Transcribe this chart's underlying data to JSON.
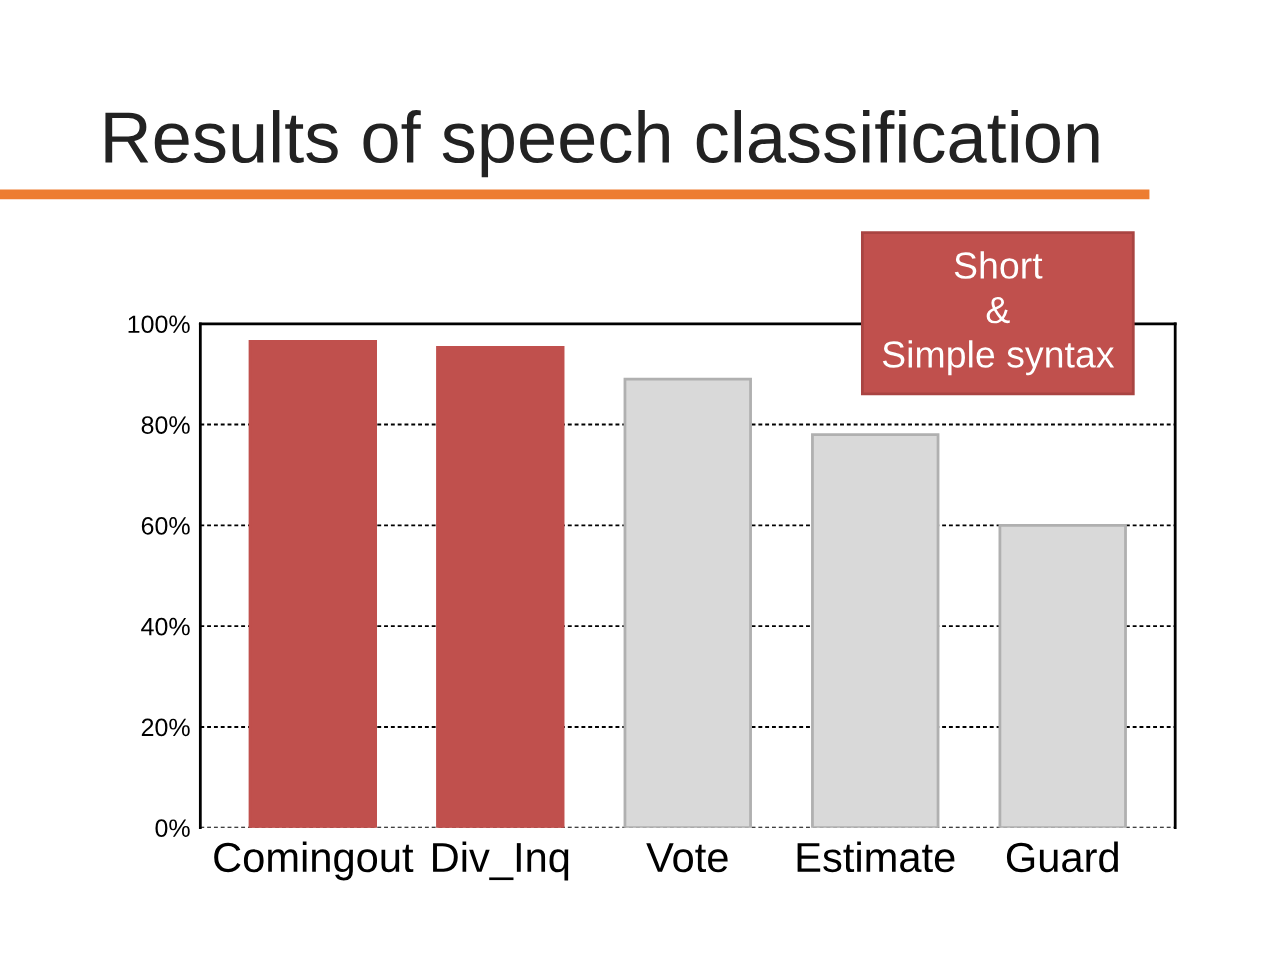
{
  "chart_data": {
    "type": "bar",
    "title": "Results of speech classification",
    "categories": [
      "Comingout",
      "Div_Inq",
      "Vote",
      "Estimate",
      "Guard"
    ],
    "values": [
      96.5,
      95.3,
      89,
      78,
      60
    ],
    "colors": [
      "#c0504d",
      "#c0504d",
      "#d9d9d9",
      "#d9d9d9",
      "#d9d9d9"
    ],
    "ylim": [
      0,
      100
    ],
    "yticks": [
      {
        "value": 0,
        "label": "0%"
      },
      {
        "value": 20,
        "label": "20%"
      },
      {
        "value": 40,
        "label": "40%"
      },
      {
        "value": 60,
        "label": "60%"
      },
      {
        "value": 80,
        "label": "80%"
      },
      {
        "value": 100,
        "label": "100%"
      }
    ],
    "grid": "y",
    "annotations": [
      "Short\n&\nSimple syntax"
    ]
  }
}
